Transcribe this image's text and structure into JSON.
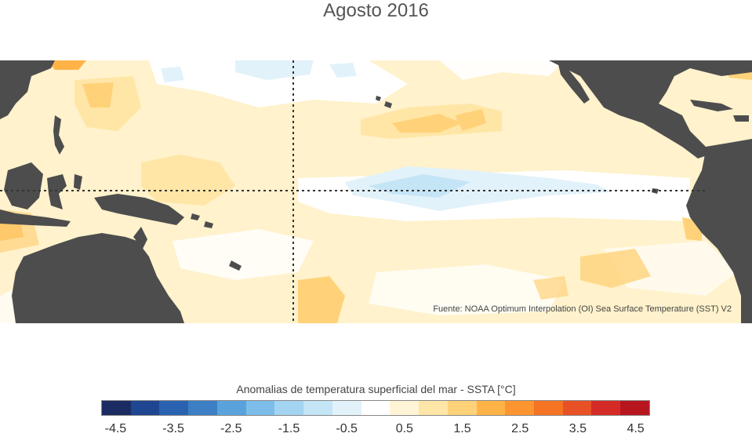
{
  "title": "Agosto 2016",
  "source": "Fuente: NOAA Optimum Interpolation (OI) Sea Surface Temperature (SST) V2",
  "legend": {
    "title": "Anomalias de temperatura superficial del mar - SSTA  [°C]",
    "tick_labels": [
      "-4.5",
      "-3.5",
      "-2.5",
      "-1.5",
      "-0.5",
      "0.5",
      "1.5",
      "2.5",
      "3.5",
      "4.5"
    ],
    "colors": [
      "#1b2c62",
      "#1f4690",
      "#2a62b0",
      "#3d7fc4",
      "#5aa2dc",
      "#7dbde9",
      "#a3d4f1",
      "#c4e5f6",
      "#e2f2fa",
      "#ffffff",
      "#fff5d6",
      "#ffe6a6",
      "#ffd27a",
      "#ffb347",
      "#fc9530",
      "#f57424",
      "#e85025",
      "#d42b26",
      "#b8161f"
    ]
  },
  "map": {
    "land_color": "#4d4d4d",
    "ocean_base_color": "#fff2cc",
    "guide_line_color": "#333333"
  }
}
